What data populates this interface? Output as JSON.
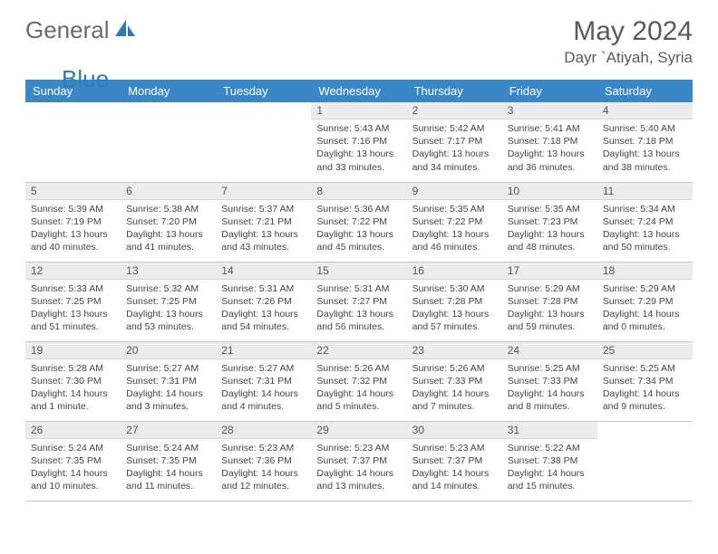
{
  "brand": {
    "part1": "General",
    "part2": "Blue",
    "icon_color": "#2a7ab8"
  },
  "title": "May 2024",
  "location": "Dayr `Atiyah, Syria",
  "colors": {
    "header_bg": "#3a87c7",
    "header_fg": "#ffffff",
    "daynum_bg": "#ececec",
    "border": "#c7c7c7",
    "text": "#444444"
  },
  "weekdays": [
    "Sunday",
    "Monday",
    "Tuesday",
    "Wednesday",
    "Thursday",
    "Friday",
    "Saturday"
  ],
  "weeks": [
    [
      null,
      null,
      null,
      {
        "n": "1",
        "sr": "5:43 AM",
        "ss": "7:16 PM",
        "dl": "13 hours and 33 minutes."
      },
      {
        "n": "2",
        "sr": "5:42 AM",
        "ss": "7:17 PM",
        "dl": "13 hours and 34 minutes."
      },
      {
        "n": "3",
        "sr": "5:41 AM",
        "ss": "7:18 PM",
        "dl": "13 hours and 36 minutes."
      },
      {
        "n": "4",
        "sr": "5:40 AM",
        "ss": "7:18 PM",
        "dl": "13 hours and 38 minutes."
      }
    ],
    [
      {
        "n": "5",
        "sr": "5:39 AM",
        "ss": "7:19 PM",
        "dl": "13 hours and 40 minutes."
      },
      {
        "n": "6",
        "sr": "5:38 AM",
        "ss": "7:20 PM",
        "dl": "13 hours and 41 minutes."
      },
      {
        "n": "7",
        "sr": "5:37 AM",
        "ss": "7:21 PM",
        "dl": "13 hours and 43 minutes."
      },
      {
        "n": "8",
        "sr": "5:36 AM",
        "ss": "7:22 PM",
        "dl": "13 hours and 45 minutes."
      },
      {
        "n": "9",
        "sr": "5:35 AM",
        "ss": "7:22 PM",
        "dl": "13 hours and 46 minutes."
      },
      {
        "n": "10",
        "sr": "5:35 AM",
        "ss": "7:23 PM",
        "dl": "13 hours and 48 minutes."
      },
      {
        "n": "11",
        "sr": "5:34 AM",
        "ss": "7:24 PM",
        "dl": "13 hours and 50 minutes."
      }
    ],
    [
      {
        "n": "12",
        "sr": "5:33 AM",
        "ss": "7:25 PM",
        "dl": "13 hours and 51 minutes."
      },
      {
        "n": "13",
        "sr": "5:32 AM",
        "ss": "7:25 PM",
        "dl": "13 hours and 53 minutes."
      },
      {
        "n": "14",
        "sr": "5:31 AM",
        "ss": "7:26 PM",
        "dl": "13 hours and 54 minutes."
      },
      {
        "n": "15",
        "sr": "5:31 AM",
        "ss": "7:27 PM",
        "dl": "13 hours and 56 minutes."
      },
      {
        "n": "16",
        "sr": "5:30 AM",
        "ss": "7:28 PM",
        "dl": "13 hours and 57 minutes."
      },
      {
        "n": "17",
        "sr": "5:29 AM",
        "ss": "7:28 PM",
        "dl": "13 hours and 59 minutes."
      },
      {
        "n": "18",
        "sr": "5:29 AM",
        "ss": "7:29 PM",
        "dl": "14 hours and 0 minutes."
      }
    ],
    [
      {
        "n": "19",
        "sr": "5:28 AM",
        "ss": "7:30 PM",
        "dl": "14 hours and 1 minute."
      },
      {
        "n": "20",
        "sr": "5:27 AM",
        "ss": "7:31 PM",
        "dl": "14 hours and 3 minutes."
      },
      {
        "n": "21",
        "sr": "5:27 AM",
        "ss": "7:31 PM",
        "dl": "14 hours and 4 minutes."
      },
      {
        "n": "22",
        "sr": "5:26 AM",
        "ss": "7:32 PM",
        "dl": "14 hours and 5 minutes."
      },
      {
        "n": "23",
        "sr": "5:26 AM",
        "ss": "7:33 PM",
        "dl": "14 hours and 7 minutes."
      },
      {
        "n": "24",
        "sr": "5:25 AM",
        "ss": "7:33 PM",
        "dl": "14 hours and 8 minutes."
      },
      {
        "n": "25",
        "sr": "5:25 AM",
        "ss": "7:34 PM",
        "dl": "14 hours and 9 minutes."
      }
    ],
    [
      {
        "n": "26",
        "sr": "5:24 AM",
        "ss": "7:35 PM",
        "dl": "14 hours and 10 minutes."
      },
      {
        "n": "27",
        "sr": "5:24 AM",
        "ss": "7:35 PM",
        "dl": "14 hours and 11 minutes."
      },
      {
        "n": "28",
        "sr": "5:23 AM",
        "ss": "7:36 PM",
        "dl": "14 hours and 12 minutes."
      },
      {
        "n": "29",
        "sr": "5:23 AM",
        "ss": "7:37 PM",
        "dl": "14 hours and 13 minutes."
      },
      {
        "n": "30",
        "sr": "5:23 AM",
        "ss": "7:37 PM",
        "dl": "14 hours and 14 minutes."
      },
      {
        "n": "31",
        "sr": "5:22 AM",
        "ss": "7:38 PM",
        "dl": "14 hours and 15 minutes."
      },
      null
    ]
  ],
  "labels": {
    "sunrise": "Sunrise: ",
    "sunset": "Sunset: ",
    "daylight": "Daylight: "
  }
}
